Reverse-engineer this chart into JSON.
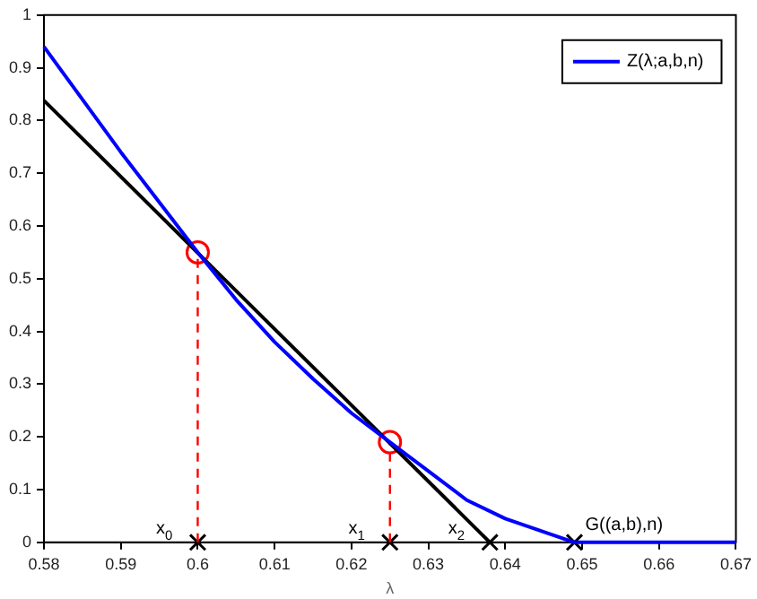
{
  "chart_data": {
    "type": "line",
    "xlabel": "λ",
    "xlim": [
      0.58,
      0.67
    ],
    "xticks": [
      0.58,
      0.59,
      0.6,
      0.61,
      0.62,
      0.63,
      0.64,
      0.65,
      0.66,
      0.67
    ],
    "ylim": [
      0,
      1
    ],
    "yticks": [
      0,
      0.1,
      0.2,
      0.3,
      0.4,
      0.5,
      0.6,
      0.7,
      0.8,
      0.9,
      1
    ],
    "grid": false,
    "legend": "top right",
    "series": [
      {
        "name": "Z(λ;a,b,n)",
        "color": "#0000ff",
        "x": [
          0.58,
          0.59,
          0.6,
          0.605,
          0.61,
          0.615,
          0.62,
          0.625,
          0.63,
          0.635,
          0.64,
          0.645,
          0.649,
          0.67
        ],
        "values": [
          0.94,
          0.74,
          0.55,
          0.46,
          0.38,
          0.31,
          0.245,
          0.19,
          0.135,
          0.08,
          0.045,
          0.02,
          0,
          0
        ]
      },
      {
        "color": "#000000",
        "x": [
          0.58,
          0.638
        ],
        "values": [
          0.838,
          0
        ]
      },
      {
        "type": "line",
        "color": "#ff0000",
        "line_style": "dashed",
        "x": [
          0.6,
          0.6
        ],
        "values": [
          0,
          0.55
        ]
      },
      {
        "type": "line",
        "color": "#ff0000",
        "line_style": "dashed",
        "x": [
          0.625,
          0.625
        ],
        "values": [
          0,
          0.19
        ]
      },
      {
        "type": "scatter",
        "color": "#ff0000",
        "marker": "circle",
        "x": [
          0.6,
          0.625
        ],
        "values": [
          0.55,
          0.19
        ]
      },
      {
        "type": "scatter",
        "color": "#000000",
        "marker": "cross",
        "x": [
          0.6,
          0.625,
          0.638,
          0.649
        ],
        "values": [
          0,
          0,
          0,
          0
        ]
      }
    ],
    "annotations": [
      {
        "text": "x$_{0}$",
        "x": 0.6,
        "y": 0
      },
      {
        "text": "x$_{1}$",
        "x": 0.625,
        "y": 0
      },
      {
        "text": "x$_{2}$",
        "x": 0.638,
        "y": 0
      },
      {
        "text": "G((a,b),n)",
        "x": 0.649,
        "y": 0
      }
    ]
  }
}
